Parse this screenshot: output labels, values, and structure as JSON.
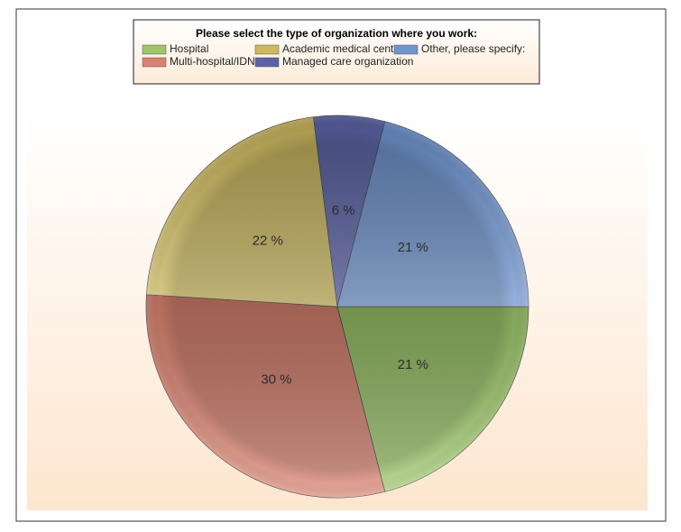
{
  "chart_data": {
    "type": "pie",
    "title": "Please select the type of organization where you work:",
    "categories": [
      "Hospital",
      "Multi-hospital/IDN",
      "Academic medical center",
      "Managed care organization",
      "Other, please specify:"
    ],
    "values": [
      21,
      30,
      22,
      6,
      21
    ],
    "value_labels": [
      "21 %",
      "30 %",
      "22 %",
      "6 %",
      "21 %"
    ],
    "colors": [
      "#9dc76a",
      "#d9826f",
      "#cdb95e",
      "#5b63a8",
      "#6f95d0"
    ],
    "legend": "top"
  }
}
